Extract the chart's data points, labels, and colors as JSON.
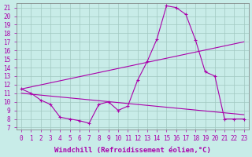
{
  "xlabel": "Windchill (Refroidissement éolien,°C)",
  "bg_color": "#c8ece8",
  "line_color": "#aa00aa",
  "xlim": [
    -0.5,
    23.5
  ],
  "ylim": [
    6.8,
    21.5
  ],
  "xticks": [
    0,
    1,
    2,
    3,
    4,
    5,
    6,
    7,
    8,
    9,
    10,
    11,
    12,
    13,
    14,
    15,
    16,
    17,
    18,
    19,
    20,
    21,
    22,
    23
  ],
  "yticks": [
    7,
    8,
    9,
    10,
    11,
    12,
    13,
    14,
    15,
    16,
    17,
    18,
    19,
    20,
    21
  ],
  "line1_x": [
    0,
    1,
    2,
    3,
    4,
    5,
    6,
    7,
    8,
    9,
    10,
    11,
    12,
    13,
    14,
    15,
    16,
    17,
    18,
    19,
    20,
    21,
    22,
    23
  ],
  "line1_y": [
    11.5,
    11.0,
    10.2,
    9.7,
    8.2,
    8.0,
    7.8,
    7.5,
    9.7,
    10.0,
    9.0,
    9.5,
    12.5,
    14.7,
    17.3,
    21.2,
    21.0,
    20.2,
    17.2,
    13.5,
    13.0,
    8.0,
    8.0,
    8.0
  ],
  "line2_x": [
    0,
    23
  ],
  "line2_y": [
    11.5,
    17.0
  ],
  "line3_x": [
    0,
    23
  ],
  "line3_y": [
    11.0,
    8.5
  ],
  "tick_fontsize": 5.5,
  "xlabel_fontsize": 6.5
}
